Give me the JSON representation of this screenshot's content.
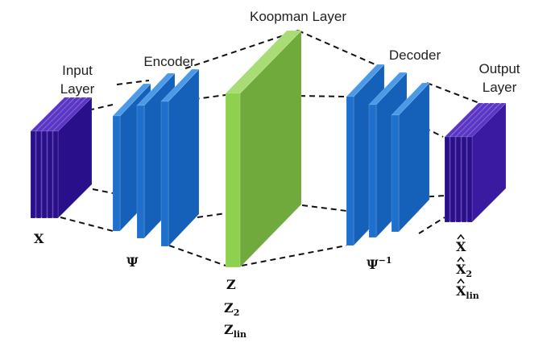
{
  "labels": {
    "koopman": "Koopman Layer",
    "encoder": "Encoder",
    "decoder": "Decoder",
    "input_line1": "Input",
    "input_line2": "Layer",
    "output_line1": "Output",
    "output_line2": "Layer"
  },
  "symbols": {
    "x": "X",
    "psi": "Ψ",
    "psi_inv_base": "Ψ",
    "psi_inv_sup": "−1",
    "z": "Z",
    "z2_base": "Z",
    "z2_sub": "2",
    "zlin_base": "Z",
    "zlin_sub": "lin",
    "xhat": "X",
    "xhat2_base": "X",
    "xhat2_sub": "2",
    "xhatlin_base": "X",
    "xhatlin_sub": "lin"
  },
  "colors": {
    "input_output_front": "#2a0f8a",
    "input_output_top": "#5b34c8",
    "encoder_front": "#1f6fcc",
    "encoder_side": "#1560b8",
    "encoder_top": "#4a9ae8",
    "koopman_front": "#70aa3c",
    "koopman_side": "#8fd14f",
    "koopman_top": "#a9dc74"
  }
}
